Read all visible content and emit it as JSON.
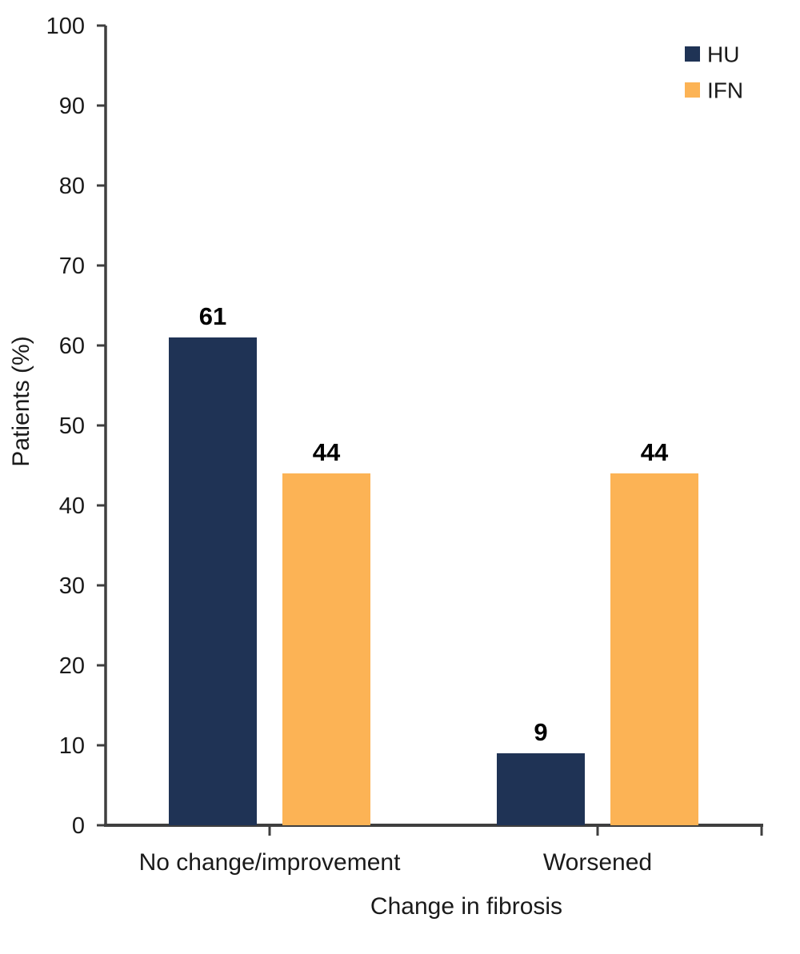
{
  "chart_data": {
    "type": "bar",
    "title": "",
    "categories": [
      "No change/improvement",
      "Worsened"
    ],
    "series": [
      {
        "name": "HU",
        "color": "#1f3355",
        "values": [
          61,
          9
        ]
      },
      {
        "name": "IFN",
        "color": "#fcb355",
        "values": [
          44,
          44
        ]
      }
    ],
    "xlabel": "Change in fibrosis",
    "ylabel": "Patients (%)",
    "ylim": [
      0,
      100
    ],
    "yticks": [
      0,
      10,
      20,
      30,
      40,
      50,
      60,
      70,
      80,
      90,
      100
    ],
    "grid": false,
    "show_value_labels": true,
    "legend_position": "top-right",
    "colors": {
      "axis": "#3f3f3f",
      "text": "#1a1a1a",
      "value_label": "#000000",
      "background": "#ffffff"
    }
  }
}
